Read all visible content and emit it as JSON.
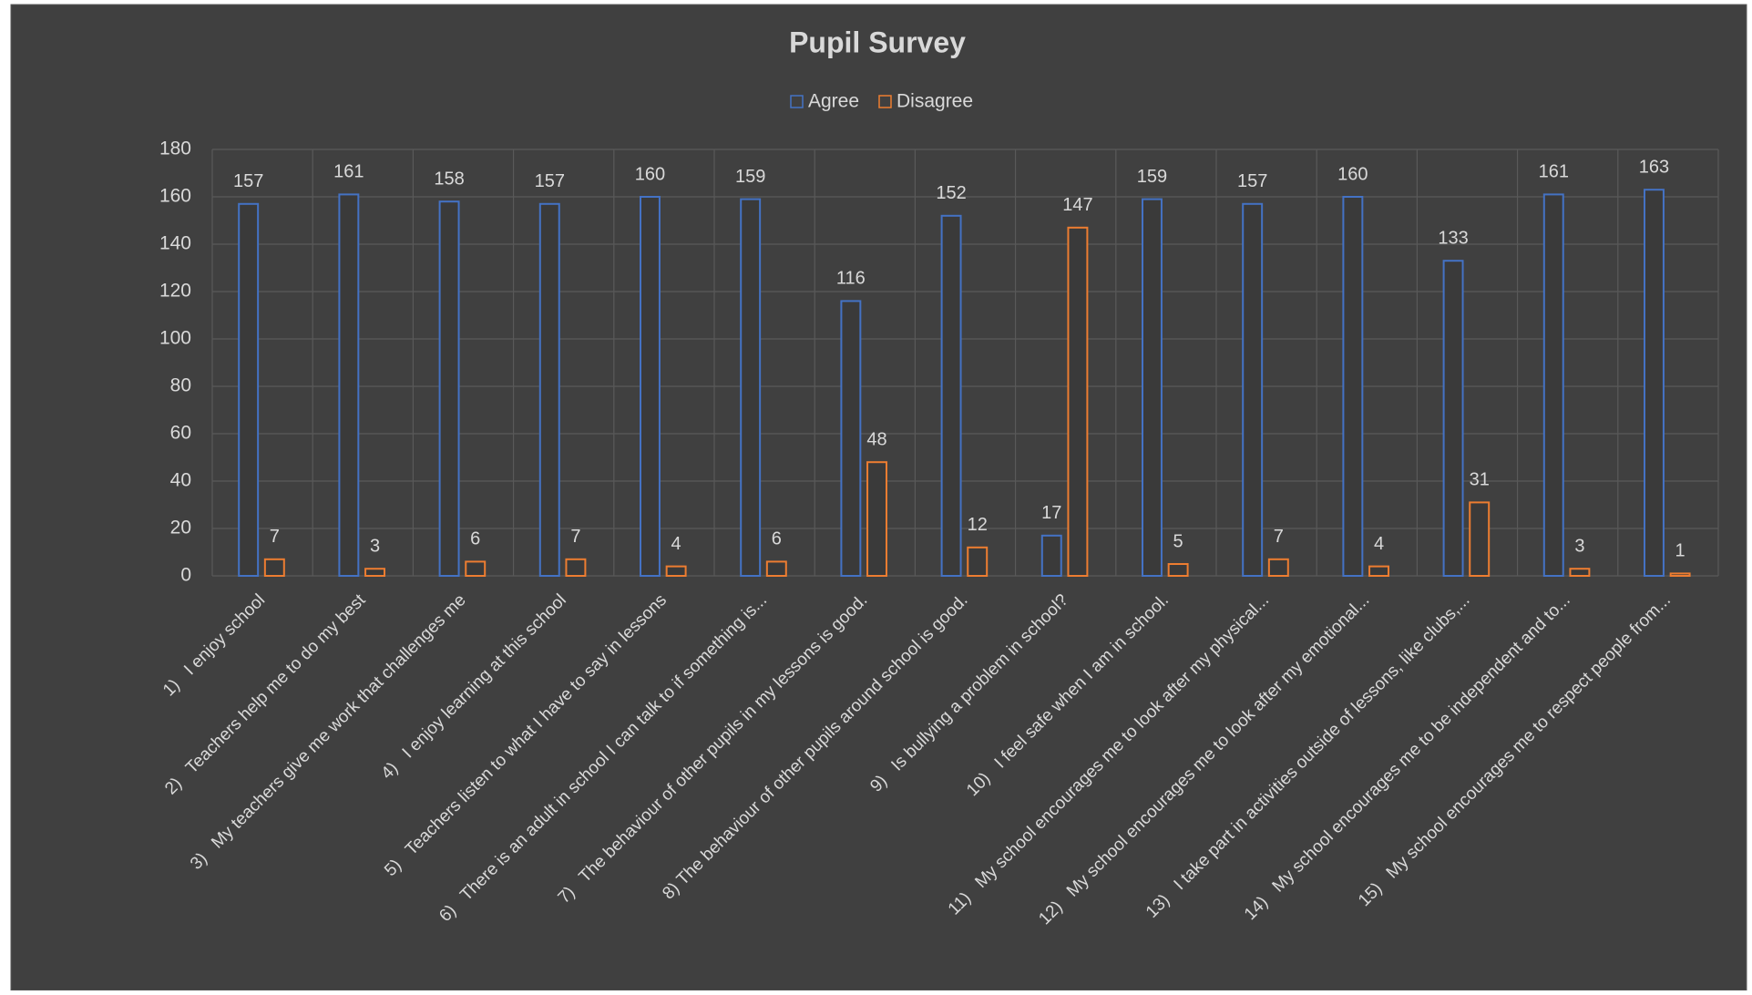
{
  "chart_data": {
    "type": "bar",
    "title": "Pupil Survey",
    "categories": [
      "1)   I enjoy school",
      "2)   Teachers help me to do my best",
      "3)   My teachers give me work that challenges me",
      "4)   I enjoy learning at this school",
      "5)   Teachers listen to what I have to say in lessons",
      "6)   There is an adult in school I can talk to if something is...",
      "7)   The behaviour of other pupils in my lessons is good.",
      "8) The behaviour of other pupils around school is good.",
      "9)   Is bullying a problem in school?",
      "10)   I feel safe when I am in school.",
      "11)   My school encourages me to look after my physical...",
      "12)   My school encourages me to look after my emotional...",
      "13)   I take part in activities outside of lessons, like clubs,...",
      "14)   My school encourages me to be independent and to...",
      "15)   My school encourages me to respect people from..."
    ],
    "series": [
      {
        "name": "Agree",
        "color": "#4472c4",
        "values": [
          157,
          161,
          158,
          157,
          160,
          159,
          116,
          152,
          17,
          159,
          157,
          160,
          133,
          161,
          163
        ]
      },
      {
        "name": "Disagree",
        "color": "#ed7d31",
        "values": [
          7,
          3,
          6,
          7,
          4,
          6,
          48,
          12,
          147,
          5,
          7,
          4,
          31,
          3,
          1
        ]
      }
    ],
    "ylim": [
      0,
      180
    ],
    "yticks": [
      0,
      20,
      40,
      60,
      80,
      100,
      120,
      140,
      160,
      180
    ],
    "grid": true,
    "legend": "top"
  }
}
